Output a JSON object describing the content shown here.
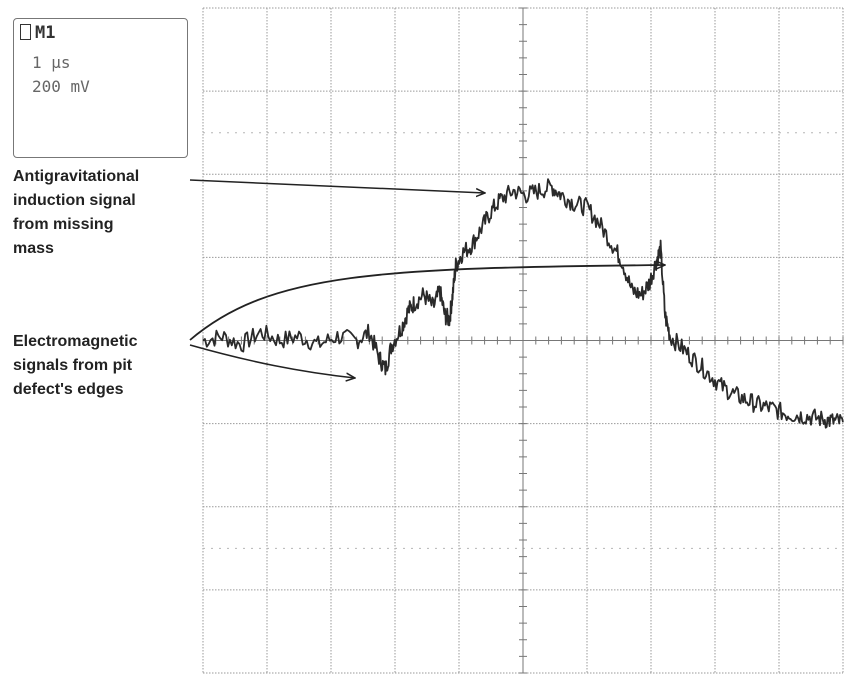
{
  "chart_data": {
    "type": "line",
    "title": "",
    "xlabel": "",
    "ylabel": "",
    "grid": true,
    "grid_divisions": {
      "x": 10,
      "y": 8
    },
    "xlim": [
      0,
      10
    ],
    "ylim": [
      -4,
      4
    ],
    "scope_readout": {
      "channel": "M1",
      "time_per_div": "1 μs",
      "volts_per_div": "200 mV"
    },
    "series": [
      {
        "color": "#2a2a2a",
        "points": [
          [
            0,
            0.0
          ],
          [
            0.3,
            0.05
          ],
          [
            0.6,
            -0.05
          ],
          [
            0.9,
            0.1
          ],
          [
            1.2,
            0.0
          ],
          [
            1.5,
            0.05
          ],
          [
            1.8,
            -0.05
          ],
          [
            2.1,
            0.05
          ],
          [
            2.4,
            0.0
          ],
          [
            2.6,
            0.1
          ],
          [
            2.75,
            -0.2
          ],
          [
            2.85,
            -0.35
          ],
          [
            2.95,
            -0.05
          ],
          [
            3.1,
            0.15
          ],
          [
            3.2,
            0.35
          ],
          [
            3.3,
            0.45
          ],
          [
            3.45,
            0.55
          ],
          [
            3.6,
            0.4
          ],
          [
            3.7,
            0.6
          ],
          [
            3.78,
            0.3
          ],
          [
            3.85,
            0.25
          ],
          [
            3.9,
            0.55
          ],
          [
            3.95,
            0.9
          ],
          [
            4.05,
            1.05
          ],
          [
            4.2,
            1.15
          ],
          [
            4.35,
            1.35
          ],
          [
            4.5,
            1.55
          ],
          [
            4.65,
            1.7
          ],
          [
            4.85,
            1.8
          ],
          [
            5.05,
            1.75
          ],
          [
            5.25,
            1.8
          ],
          [
            5.45,
            1.85
          ],
          [
            5.6,
            1.75
          ],
          [
            5.8,
            1.65
          ],
          [
            6.0,
            1.6
          ],
          [
            6.2,
            1.4
          ],
          [
            6.4,
            1.15
          ],
          [
            6.55,
            0.95
          ],
          [
            6.7,
            0.6
          ],
          [
            6.85,
            0.55
          ],
          [
            6.98,
            0.7
          ],
          [
            7.08,
            0.95
          ],
          [
            7.15,
            1.1
          ],
          [
            7.22,
            0.3
          ],
          [
            7.3,
            0.05
          ],
          [
            7.5,
            -0.1
          ],
          [
            7.7,
            -0.25
          ],
          [
            7.9,
            -0.4
          ],
          [
            8.1,
            -0.55
          ],
          [
            8.3,
            -0.65
          ],
          [
            8.5,
            -0.72
          ],
          [
            8.7,
            -0.78
          ],
          [
            8.9,
            -0.82
          ],
          [
            9.1,
            -0.88
          ],
          [
            9.3,
            -0.9
          ],
          [
            9.5,
            -0.92
          ],
          [
            9.7,
            -0.95
          ],
          [
            9.85,
            -0.97
          ],
          [
            10,
            -0.98
          ]
        ]
      }
    ],
    "annotations": [
      "Antigravitational",
      "induction signal",
      "from missing",
      "mass",
      "Electromagnetic",
      "signals from pit",
      "defect's edges"
    ]
  }
}
